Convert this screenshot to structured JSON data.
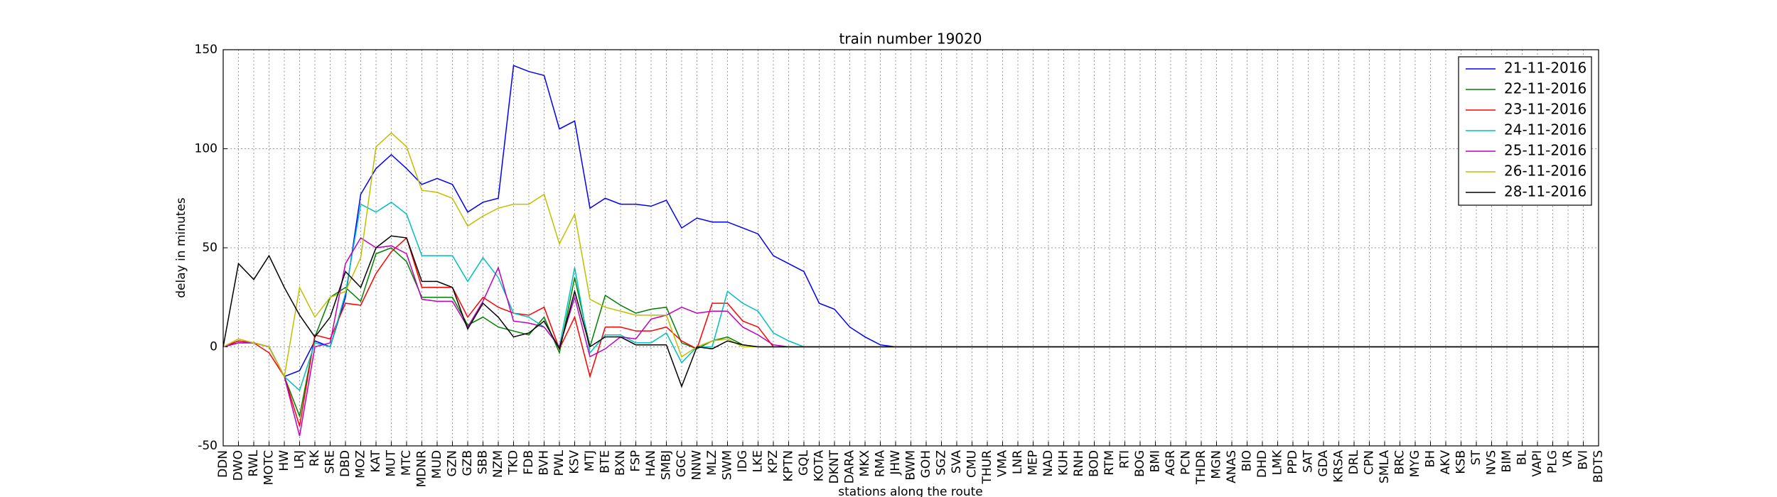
{
  "chart_data": {
    "type": "line",
    "title": "train number 19020",
    "xlabel": "stations along the route",
    "ylabel": "delay in minutes",
    "categories": [
      "DDN",
      "DWO",
      "RWL",
      "MOTC",
      "HW",
      "LRJ",
      "RK",
      "SRE",
      "DBD",
      "MOZ",
      "KAT",
      "MUT",
      "MTC",
      "MDNR",
      "MUD",
      "GZN",
      "GZB",
      "SBB",
      "NZM",
      "TKD",
      "FDB",
      "BVH",
      "PWL",
      "KSV",
      "MTJ",
      "BTE",
      "BXN",
      "FSP",
      "HAN",
      "SMBJ",
      "GGC",
      "NNW",
      "MLZ",
      "SWM",
      "IDG",
      "LKE",
      "KPZ",
      "KPTN",
      "GQL",
      "KOTA",
      "DKNT",
      "DARA",
      "MKX",
      "RMA",
      "JHW",
      "BWM",
      "GOH",
      "SGZ",
      "SVA",
      "CMU",
      "THUR",
      "VMA",
      "LNR",
      "MEP",
      "NAD",
      "KUH",
      "RNH",
      "BOD",
      "RTM",
      "RTI",
      "BOG",
      "BMI",
      "AGR",
      "PCN",
      "THDR",
      "MGN",
      "ANAS",
      "BIO",
      "DHD",
      "LMK",
      "PPD",
      "SAT",
      "GDA",
      "KRSA",
      "DRL",
      "CPN",
      "SMLA",
      "BRC",
      "MYG",
      "BH",
      "AKV",
      "KSB",
      "ST",
      "NVS",
      "BIM",
      "BL",
      "VAPI",
      "PLG",
      "VR",
      "BVI",
      "BDTS"
    ],
    "series": [
      {
        "name": "21-11-2016",
        "color": "#0000ff",
        "values": [
          0,
          2,
          2,
          0,
          -15,
          -12,
          3,
          0,
          25,
          77,
          90,
          97,
          90,
          82,
          85,
          82,
          68,
          73,
          75,
          142,
          139,
          137,
          110,
          114,
          70,
          75,
          72,
          72,
          71,
          74,
          60,
          65,
          63,
          63,
          60,
          57,
          46,
          42,
          38,
          22,
          19,
          10,
          5,
          1,
          0,
          0,
          0,
          0,
          0,
          0,
          0,
          0,
          0,
          0,
          0,
          0,
          0,
          0,
          0,
          0,
          0,
          0,
          0,
          0,
          0,
          0,
          0,
          0,
          0,
          0,
          0,
          0,
          0,
          0,
          0,
          0,
          0,
          0,
          0,
          0,
          0,
          0,
          0,
          0,
          0,
          0,
          0,
          0,
          0,
          0,
          0
        ]
      },
      {
        "name": "22-11-2016",
        "color": "#008000",
        "values": [
          0,
          3,
          2,
          0,
          -15,
          -35,
          5,
          25,
          30,
          23,
          47,
          50,
          43,
          25,
          25,
          25,
          11,
          15,
          10,
          8,
          6,
          15,
          -3,
          35,
          0,
          26,
          21,
          17,
          19,
          20,
          2,
          -1,
          3,
          5,
          1,
          0,
          0,
          0,
          0,
          0,
          0,
          0,
          0,
          0,
          0,
          0,
          0,
          0,
          0,
          0,
          0,
          0,
          0,
          0,
          0,
          0,
          0,
          0,
          0,
          0,
          0,
          0,
          0,
          0,
          0,
          0,
          0,
          0,
          0,
          0,
          0,
          0,
          0,
          0,
          0,
          0,
          0,
          0,
          0,
          0,
          0,
          0,
          0,
          0,
          0,
          0,
          0,
          0,
          0,
          0,
          0
        ]
      },
      {
        "name": "23-11-2016",
        "color": "#ff0000",
        "values": [
          0,
          3,
          2,
          -3,
          -15,
          -40,
          6,
          4,
          22,
          21,
          37,
          48,
          55,
          30,
          30,
          30,
          15,
          25,
          20,
          17,
          16,
          20,
          -1,
          15,
          -15,
          10,
          10,
          8,
          8,
          10,
          3,
          -1,
          22,
          22,
          13,
          10,
          0,
          0,
          0,
          0,
          0,
          0,
          0,
          0,
          0,
          0,
          0,
          0,
          0,
          0,
          0,
          0,
          0,
          0,
          0,
          0,
          0,
          0,
          0,
          0,
          0,
          0,
          0,
          0,
          0,
          0,
          0,
          0,
          0,
          0,
          0,
          0,
          0,
          0,
          0,
          0,
          0,
          0,
          0,
          0,
          0,
          0,
          0,
          0,
          0,
          0,
          0,
          0,
          0,
          0,
          0
        ]
      },
      {
        "name": "24-11-2016",
        "color": "#00bfbf",
        "values": [
          0,
          2,
          2,
          0,
          -15,
          -22,
          2,
          0,
          27,
          72,
          68,
          73,
          67,
          46,
          46,
          46,
          33,
          45,
          35,
          17,
          15,
          10,
          0,
          40,
          -3,
          6,
          6,
          2,
          2,
          7,
          -8,
          0,
          0,
          28,
          22,
          18,
          7,
          3,
          0,
          0,
          0,
          0,
          0,
          0,
          0,
          0,
          0,
          0,
          0,
          0,
          0,
          0,
          0,
          0,
          0,
          0,
          0,
          0,
          0,
          0,
          0,
          0,
          0,
          0,
          0,
          0,
          0,
          0,
          0,
          0,
          0,
          0,
          0,
          0,
          0,
          0,
          0,
          0,
          0,
          0,
          0,
          0,
          0,
          0,
          0,
          0,
          0,
          0,
          0,
          0,
          0
        ]
      },
      {
        "name": "25-11-2016",
        "color": "#bf00bf",
        "values": [
          0,
          2,
          2,
          0,
          -15,
          -45,
          0,
          2,
          42,
          55,
          50,
          51,
          47,
          24,
          23,
          23,
          10,
          23,
          40,
          13,
          12,
          10,
          0,
          25,
          -5,
          -1,
          5,
          4,
          14,
          16,
          20,
          17,
          18,
          18,
          10,
          6,
          1,
          0,
          0,
          0,
          0,
          0,
          0,
          0,
          0,
          0,
          0,
          0,
          0,
          0,
          0,
          0,
          0,
          0,
          0,
          0,
          0,
          0,
          0,
          0,
          0,
          0,
          0,
          0,
          0,
          0,
          0,
          0,
          0,
          0,
          0,
          0,
          0,
          0,
          0,
          0,
          0,
          0,
          0,
          0,
          0,
          0,
          0,
          0,
          0,
          0,
          0,
          0,
          0,
          0,
          0
        ]
      },
      {
        "name": "26-11-2016",
        "color": "#bfbf00",
        "values": [
          0,
          4,
          2,
          0,
          -15,
          30,
          15,
          25,
          28,
          45,
          101,
          108,
          101,
          79,
          78,
          75,
          61,
          66,
          70,
          72,
          72,
          77,
          52,
          67,
          24,
          20,
          18,
          16,
          16,
          16,
          -5,
          0,
          3,
          4,
          0,
          0,
          0,
          0,
          0,
          0,
          0,
          0,
          0,
          0,
          0,
          0,
          0,
          0,
          0,
          0,
          0,
          0,
          0,
          0,
          0,
          0,
          0,
          0,
          0,
          0,
          0,
          0,
          0,
          0,
          0,
          0,
          0,
          0,
          0,
          0,
          0,
          0,
          0,
          0,
          0,
          0,
          0,
          0,
          0,
          0,
          0,
          0,
          0,
          0,
          0,
          0,
          0,
          0,
          0,
          0,
          0
        ]
      },
      {
        "name": "28-11-2016",
        "color": "#000000",
        "values": [
          0,
          42,
          34,
          46,
          30,
          16,
          5,
          15,
          38,
          30,
          50,
          56,
          55,
          33,
          33,
          30,
          9,
          22,
          15,
          5,
          7,
          13,
          -1,
          28,
          0,
          5,
          5,
          1,
          1,
          1,
          -20,
          0,
          -1,
          3,
          1,
          0,
          0,
          0,
          0,
          0,
          0,
          0,
          0,
          0,
          0,
          0,
          0,
          0,
          0,
          0,
          0,
          0,
          0,
          0,
          0,
          0,
          0,
          0,
          0,
          0,
          0,
          0,
          0,
          0,
          0,
          0,
          0,
          0,
          0,
          0,
          0,
          0,
          0,
          0,
          0,
          0,
          0,
          0,
          0,
          0,
          0,
          0,
          0,
          0,
          0,
          0,
          0,
          0,
          0,
          0,
          0
        ]
      }
    ],
    "ylim": [
      -50,
      150
    ],
    "yticks": [
      -50,
      0,
      50,
      100,
      150
    ],
    "grid": true,
    "legend": "upper right"
  }
}
